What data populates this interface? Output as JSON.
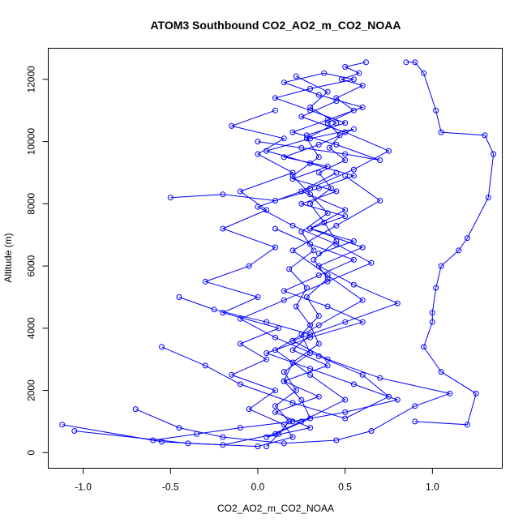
{
  "chart_data": {
    "type": "line",
    "title": "ATOM3 Southbound CO2_AO2_m_CO2_NOAA",
    "xlabel": "CO2_AO2_m_CO2_NOAA",
    "ylabel": "Altitude (m)",
    "xlim": [
      -1.2,
      1.4
    ],
    "ylim": [
      -500,
      13000
    ],
    "xticks": [
      -1.0,
      -0.5,
      0.0,
      0.5,
      1.0
    ],
    "xtick_labels": [
      "-1.0",
      "-0.5",
      "0.0",
      "0.5",
      "1.0"
    ],
    "yticks": [
      0,
      2000,
      4000,
      6000,
      8000,
      10000,
      12000
    ],
    "ytick_labels": [
      "0",
      "2000",
      "4000",
      "6000",
      "8000",
      "10000",
      "12000"
    ],
    "grid": false,
    "legend": "none",
    "marker": "open-circle",
    "color": "#0000ff",
    "series": [
      {
        "x": [
          0.05,
          0.12,
          0.18,
          0.1,
          0.22,
          0.15,
          0.3,
          0.25,
          0.35,
          0.28,
          0.4,
          0.32,
          0.45,
          0.38,
          0.3,
          0.42,
          0.35,
          0.5,
          0.41,
          0.47,
          0.4,
          0.55,
          0.45,
          0.6,
          0.48,
          0.58,
          0.5,
          0.62
        ],
        "y": [
          200,
          600,
          1000,
          1500,
          2000,
          2600,
          3200,
          3800,
          4400,
          5000,
          5600,
          6200,
          6800,
          7400,
          8000,
          8500,
          9000,
          9400,
          9800,
          10200,
          10600,
          11000,
          11400,
          11800,
          12000,
          12200,
          12400,
          12550
        ]
      },
      {
        "x": [
          -1.12,
          -0.55,
          -0.2,
          0.1,
          0.3,
          0.25,
          0.15,
          0.2,
          0.35,
          0.3,
          0.22,
          0.28,
          0.18,
          0.32,
          0.25,
          0.4,
          0.3,
          0.2,
          0.35,
          0.28,
          0.45,
          0.3,
          0.4,
          0.22
        ],
        "y": [
          900,
          350,
          250,
          600,
          1100,
          1700,
          2300,
          2900,
          3500,
          4100,
          4700,
          5300,
          5900,
          6500,
          7100,
          7700,
          8300,
          8900,
          9500,
          10100,
          10600,
          11100,
          11600,
          12100
        ]
      },
      {
        "x": [
          -1.05,
          -0.4,
          0.0,
          0.2,
          0.15,
          -0.05,
          0.1,
          -0.15,
          0.05,
          -0.1,
          0.12,
          -0.2,
          0.0,
          -0.3,
          -0.05,
          0.1,
          -0.2,
          0.05,
          -0.1,
          0.2,
          0.0,
          0.15,
          -0.15,
          0.1
        ],
        "y": [
          700,
          300,
          200,
          500,
          900,
          1400,
          2000,
          2500,
          3000,
          3500,
          4000,
          4500,
          5000,
          5500,
          6000,
          6600,
          7200,
          7800,
          8400,
          9000,
          9600,
          10100,
          10500,
          11000
        ]
      },
      {
        "x": [
          0.9,
          1.2,
          1.25,
          1.05,
          0.95,
          1.0,
          1.0,
          1.02,
          1.05,
          1.15,
          1.2,
          1.32,
          1.35,
          1.3,
          1.05,
          1.02,
          0.95,
          0.9,
          0.85
        ],
        "y": [
          1000,
          900,
          1900,
          2600,
          3400,
          4200,
          4500,
          5300,
          6000,
          6500,
          6900,
          8200,
          9600,
          10200,
          10300,
          11000,
          12200,
          12550,
          12550
        ]
      },
      {
        "x": [
          -0.7,
          -0.45,
          -0.2,
          0.15,
          0.45,
          0.65,
          0.9,
          1.1,
          0.7,
          0.4,
          0.2,
          0.5,
          0.8,
          0.55,
          0.35,
          0.6,
          0.3,
          0.5,
          0.25,
          0.45
        ],
        "y": [
          1400,
          800,
          500,
          300,
          400,
          700,
          1500,
          1900,
          2400,
          3000,
          3600,
          4200,
          4800,
          5400,
          6000,
          6600,
          7200,
          7800,
          8400,
          9000
        ]
      },
      {
        "x": [
          -0.55,
          -0.3,
          -0.1,
          0.2,
          0.5,
          0.75,
          0.6,
          0.35,
          0.1,
          -0.1,
          0.15,
          0.4,
          0.65,
          0.45,
          0.2,
          0.0,
          0.3,
          0.55,
          0.75,
          0.5,
          0.25,
          0.45
        ],
        "y": [
          3400,
          2800,
          2200,
          1600,
          1100,
          1800,
          2500,
          3100,
          3700,
          4300,
          4900,
          5500,
          6100,
          6700,
          7300,
          7900,
          8500,
          9100,
          9700,
          10300,
          10800,
          11300
        ]
      },
      {
        "x": [
          -0.45,
          -0.25,
          0.05,
          0.3,
          0.2,
          0.4,
          0.15,
          0.35,
          0.1,
          0.3,
          0.05,
          0.25,
          0.5,
          0.3,
          0.1,
          0.35,
          0.6,
          0.4,
          0.2,
          0.45,
          0.7,
          0.5
        ],
        "y": [
          5000,
          4600,
          4200,
          3800,
          3300,
          2800,
          2300,
          1800,
          1300,
          800,
          500,
          1000,
          1700,
          2500,
          3300,
          4100,
          4900,
          5700,
          6500,
          7300,
          8100,
          8900
        ]
      },
      {
        "x": [
          -0.5,
          -0.2,
          0.1,
          0.35,
          0.55,
          0.3,
          0.05,
          0.3,
          0.55,
          0.35,
          0.15,
          0.4,
          0.2,
          0.45,
          0.25,
          0.5,
          0.3,
          0.55,
          0.35
        ],
        "y": [
          8200,
          8300,
          8100,
          8500,
          8900,
          9300,
          9700,
          10100,
          10400,
          9900,
          9500,
          9200,
          8800,
          8400,
          8000,
          7600,
          7200,
          6800,
          6400
        ]
      },
      {
        "x": [
          0.0,
          0.25,
          0.5,
          0.7,
          0.45,
          0.2,
          0.4,
          0.6,
          0.35,
          0.15,
          0.38,
          0.55,
          0.3,
          0.1,
          0.3,
          0.5,
          0.28
        ],
        "y": [
          10000,
          9800,
          9600,
          9400,
          9900,
          10300,
          10700,
          11100,
          11500,
          11900,
          12200,
          12000,
          11700,
          11400,
          11000,
          10600,
          10200
        ]
      },
      {
        "x": [
          -0.6,
          -0.35,
          -0.1,
          0.2,
          0.5,
          0.8,
          0.55,
          0.3,
          0.05,
          0.3,
          0.6,
          0.4,
          0.15,
          0.35,
          0.55,
          0.3,
          0.1
        ],
        "y": [
          400,
          600,
          800,
          1000,
          1300,
          1700,
          2200,
          2700,
          3200,
          3700,
          4200,
          4700,
          5200,
          5700,
          6200,
          6700,
          7200
        ]
      }
    ]
  }
}
